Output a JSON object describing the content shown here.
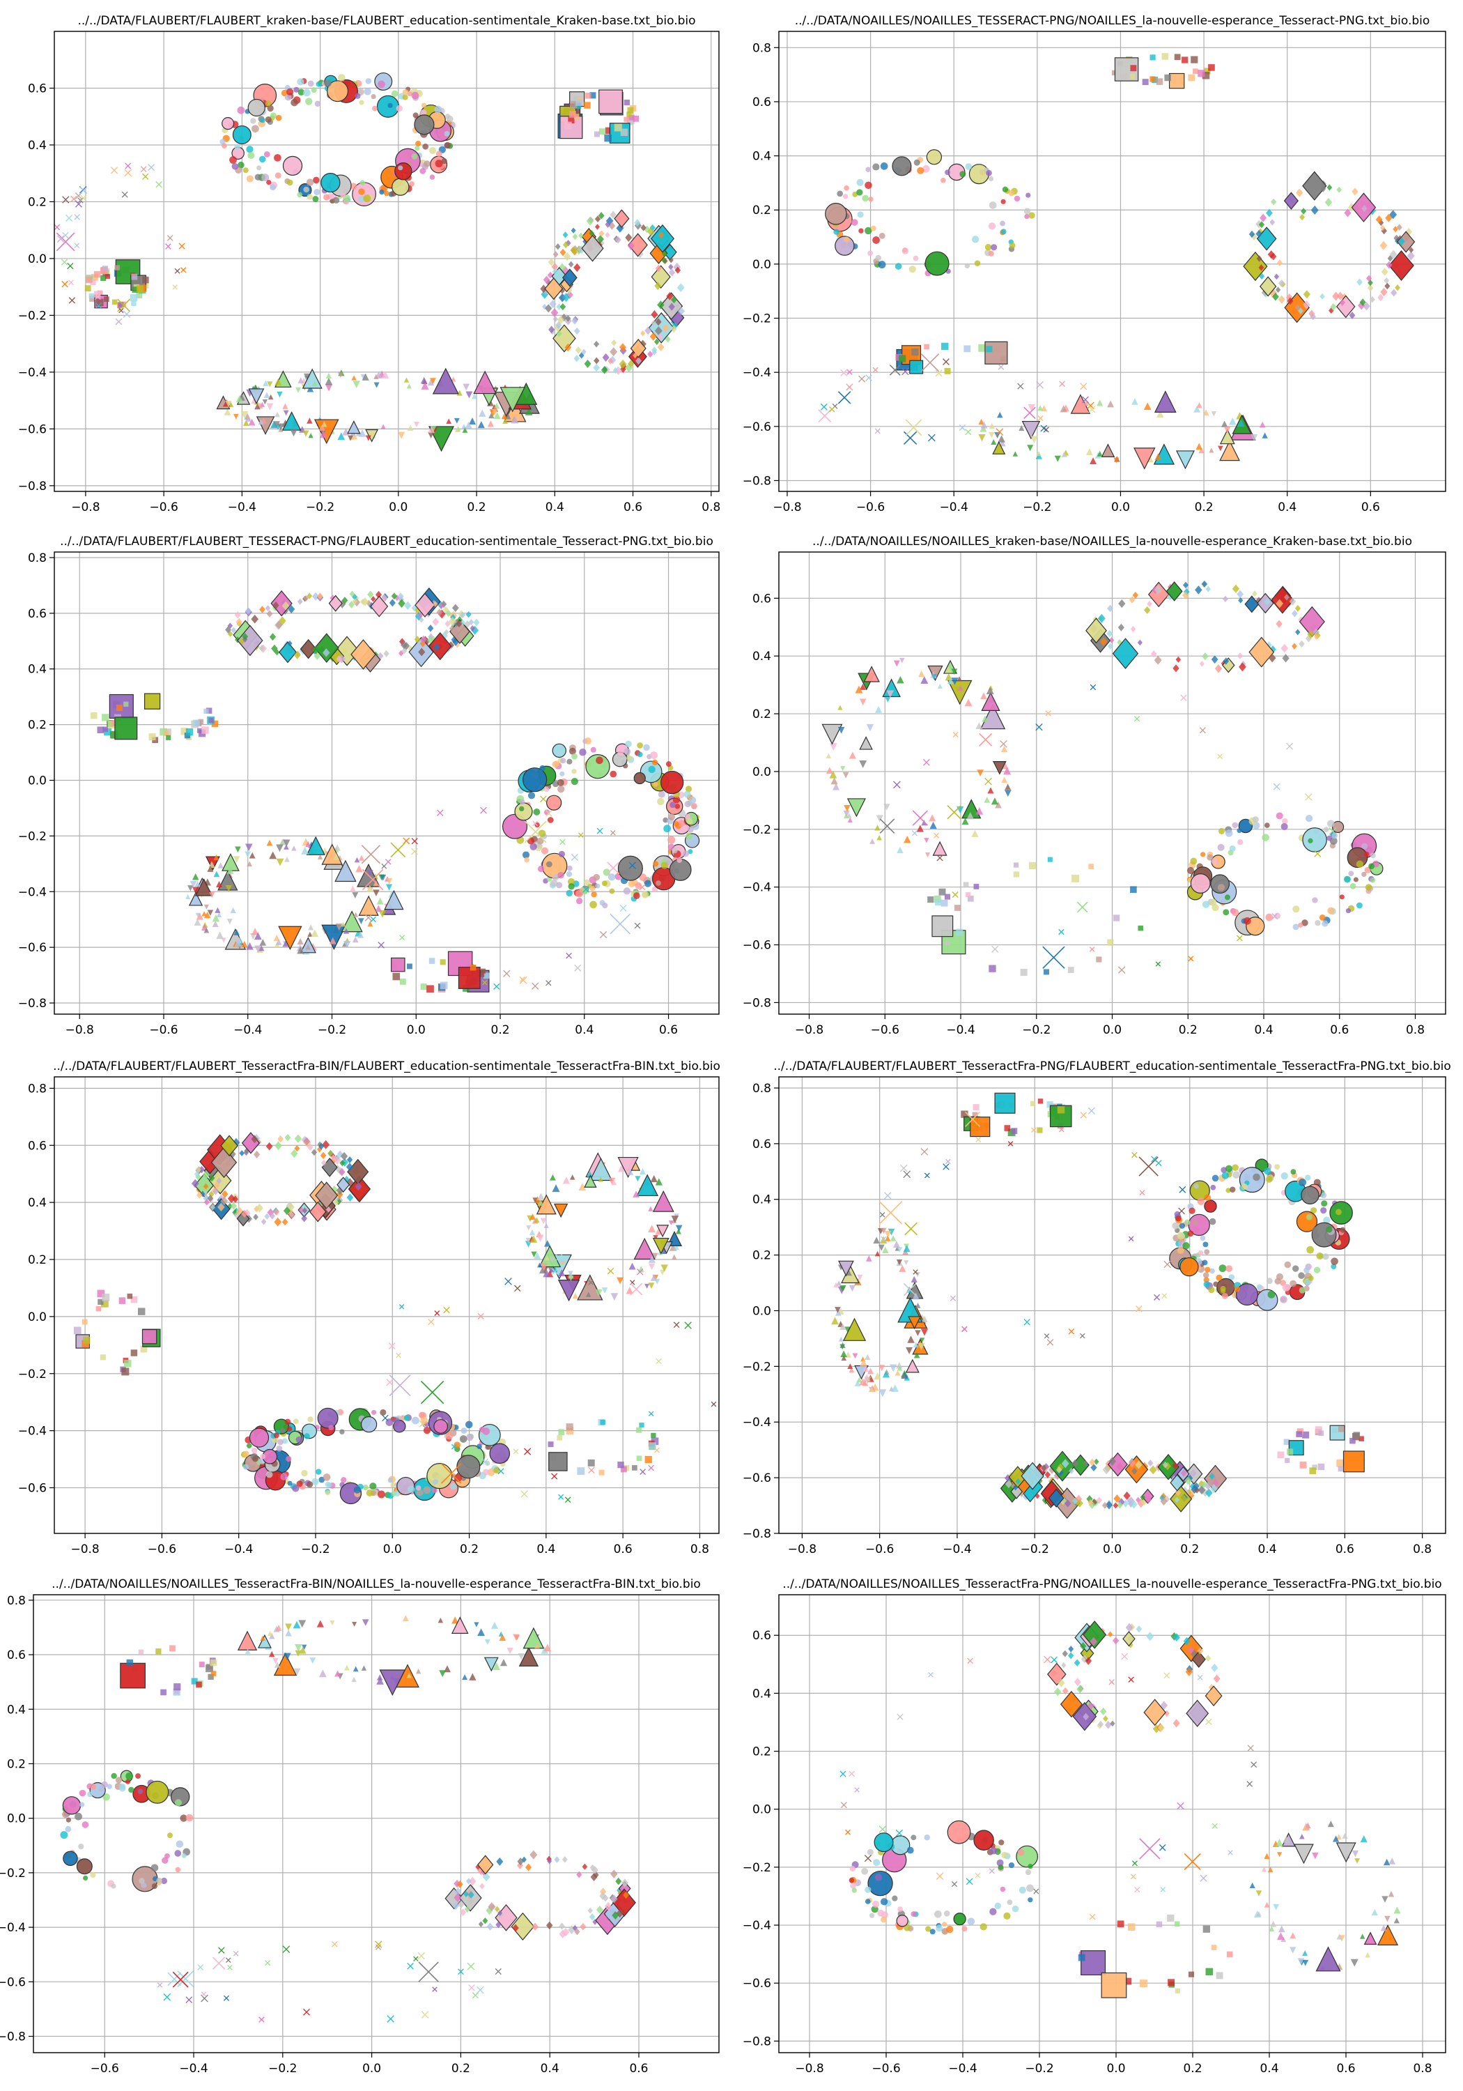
{
  "chart_data": [
    {
      "type": "scatter",
      "title": "../../DATA/FLAUBERT/FLAUBERT_kraken-base/FLAUBERT_education-sentimentale_Kraken-base.txt_bio.bio",
      "xlim": [
        -0.88,
        0.82
      ],
      "ylim": [
        -0.82,
        0.8
      ],
      "xticks": [
        -0.8,
        -0.6,
        -0.4,
        -0.2,
        0.0,
        0.2,
        0.4,
        0.6,
        0.8
      ],
      "xtick_labels": [
        "−0.8",
        "−0.6",
        "−0.4",
        "−0.2",
        "0.0",
        "0.2",
        "0.4",
        "0.6",
        "0.8"
      ],
      "yticks": [
        -0.8,
        -0.6,
        -0.4,
        -0.2,
        0.0,
        0.2,
        0.4,
        0.6
      ],
      "ytick_labels": [
        "−0.8",
        "−0.6",
        "−0.4",
        "−0.2",
        "0.0",
        "0.2",
        "0.4",
        "0.6"
      ],
      "grid": true,
      "clusters": [
        {
          "marker": "circle",
          "cx": -0.15,
          "cy": 0.42,
          "rx": 0.3,
          "ry": 0.22,
          "n": 220,
          "seed": 11
        },
        {
          "marker": "diamond",
          "cx": 0.55,
          "cy": -0.12,
          "rx": 0.18,
          "ry": 0.28,
          "n": 190,
          "seed": 12
        },
        {
          "marker": "triangle",
          "cx": -0.05,
          "cy": -0.52,
          "rx": 0.4,
          "ry": 0.12,
          "n": 170,
          "seed": 13
        },
        {
          "marker": "square",
          "cx": -0.72,
          "cy": -0.1,
          "rx": 0.08,
          "ry": 0.07,
          "n": 45,
          "seed": 14
        },
        {
          "marker": "square",
          "cx": 0.52,
          "cy": 0.5,
          "rx": 0.1,
          "ry": 0.08,
          "n": 45,
          "seed": 15
        },
        {
          "marker": "x",
          "cx": -0.7,
          "cy": 0.05,
          "rx": 0.18,
          "ry": 0.3,
          "n": 40,
          "seed": 16
        }
      ]
    },
    {
      "type": "scatter",
      "title": "../../DATA/NOAILLES/NOAILLES_TESSERACT-PNG/NOAILLES_la-nouvelle-esperance_Tesseract-PNG.txt_bio.bio",
      "xlim": [
        -0.82,
        0.78
      ],
      "ylim": [
        -0.84,
        0.86
      ],
      "xticks": [
        -0.8,
        -0.6,
        -0.4,
        -0.2,
        0.0,
        0.2,
        0.4,
        0.6
      ],
      "xtick_labels": [
        "−0.8",
        "−0.6",
        "−0.4",
        "−0.2",
        "0.0",
        "0.2",
        "0.4",
        "0.6"
      ],
      "yticks": [
        -0.8,
        -0.6,
        -0.4,
        -0.2,
        0.0,
        0.2,
        0.4,
        0.6,
        0.8
      ],
      "ytick_labels": [
        "−0.8",
        "−0.6",
        "−0.4",
        "−0.2",
        "0.0",
        "0.2",
        "0.4",
        "0.6",
        "0.8"
      ],
      "grid": true,
      "clusters": [
        {
          "marker": "circle",
          "cx": -0.45,
          "cy": 0.18,
          "rx": 0.25,
          "ry": 0.22,
          "n": 90,
          "seed": 21
        },
        {
          "marker": "diamond",
          "cx": 0.5,
          "cy": 0.05,
          "rx": 0.2,
          "ry": 0.25,
          "n": 110,
          "seed": 22
        },
        {
          "marker": "triangle",
          "cx": 0.0,
          "cy": -0.62,
          "rx": 0.35,
          "ry": 0.12,
          "n": 70,
          "seed": 23
        },
        {
          "marker": "square",
          "cx": 0.1,
          "cy": 0.72,
          "rx": 0.12,
          "ry": 0.05,
          "n": 25,
          "seed": 24
        },
        {
          "marker": "square",
          "cx": -0.4,
          "cy": -0.35,
          "rx": 0.15,
          "ry": 0.05,
          "n": 15,
          "seed": 25
        },
        {
          "marker": "x",
          "cx": -0.4,
          "cy": -0.5,
          "rx": 0.35,
          "ry": 0.15,
          "n": 35,
          "seed": 26
        }
      ]
    },
    {
      "type": "scatter",
      "title": "../../DATA/FLAUBERT/FLAUBERT_TESSERACT-PNG/FLAUBERT_education-sentimentale_Tesseract-PNG.txt_bio.bio",
      "xlim": [
        -0.86,
        0.72
      ],
      "ylim": [
        -0.84,
        0.82
      ],
      "xticks": [
        -0.8,
        -0.6,
        -0.4,
        -0.2,
        0.0,
        0.2,
        0.4,
        0.6
      ],
      "xtick_labels": [
        "−0.8",
        "−0.6",
        "−0.4",
        "−0.2",
        "0.0",
        "0.2",
        "0.4",
        "0.6"
      ],
      "yticks": [
        -0.8,
        -0.6,
        -0.4,
        -0.2,
        0.0,
        0.2,
        0.4,
        0.6,
        0.8
      ],
      "ytick_labels": [
        "−0.8",
        "−0.6",
        "−0.4",
        "−0.2",
        "0.0",
        "0.2",
        "0.4",
        "0.6",
        "0.8"
      ],
      "grid": true,
      "clusters": [
        {
          "marker": "diamond",
          "cx": -0.15,
          "cy": 0.55,
          "rx": 0.3,
          "ry": 0.12,
          "n": 190,
          "seed": 31
        },
        {
          "marker": "circle",
          "cx": 0.45,
          "cy": -0.15,
          "rx": 0.22,
          "ry": 0.3,
          "n": 230,
          "seed": 32
        },
        {
          "marker": "triangle",
          "cx": -0.3,
          "cy": -0.42,
          "rx": 0.25,
          "ry": 0.2,
          "n": 160,
          "seed": 33
        },
        {
          "marker": "square",
          "cx": -0.62,
          "cy": 0.22,
          "rx": 0.15,
          "ry": 0.08,
          "n": 40,
          "seed": 34
        },
        {
          "marker": "square",
          "cx": 0.05,
          "cy": -0.7,
          "rx": 0.12,
          "ry": 0.06,
          "n": 25,
          "seed": 35
        },
        {
          "marker": "x",
          "cx": 0.2,
          "cy": -0.4,
          "rx": 0.35,
          "ry": 0.35,
          "n": 40,
          "seed": 36
        }
      ]
    },
    {
      "type": "scatter",
      "title": "../../DATA/NOAILLES/NOAILLES_kraken-base/NOAILLES_la-nouvelle-esperance_Kraken-base.txt_bio.bio",
      "xlim": [
        -0.88,
        0.88
      ],
      "ylim": [
        -0.84,
        0.76
      ],
      "xticks": [
        -0.8,
        -0.6,
        -0.4,
        -0.2,
        0.0,
        0.2,
        0.4,
        0.6,
        0.8
      ],
      "xtick_labels": [
        "−0.8",
        "−0.6",
        "−0.4",
        "−0.2",
        "0.0",
        "0.2",
        "0.4",
        "0.6",
        "0.8"
      ],
      "yticks": [
        -0.8,
        -0.6,
        -0.4,
        -0.2,
        0.0,
        0.2,
        0.4,
        0.6
      ],
      "ytick_labels": [
        "−0.8",
        "−0.6",
        "−0.4",
        "−0.2",
        "0.0",
        "0.2",
        "0.4",
        "0.6"
      ],
      "grid": true,
      "clusters": [
        {
          "marker": "diamond",
          "cx": 0.25,
          "cy": 0.5,
          "rx": 0.3,
          "ry": 0.15,
          "n": 90,
          "seed": 41
        },
        {
          "marker": "circle",
          "cx": 0.45,
          "cy": -0.35,
          "rx": 0.25,
          "ry": 0.2,
          "n": 110,
          "seed": 42
        },
        {
          "marker": "triangle",
          "cx": -0.5,
          "cy": 0.05,
          "rx": 0.25,
          "ry": 0.35,
          "n": 90,
          "seed": 43
        },
        {
          "marker": "square",
          "cx": -0.2,
          "cy": -0.5,
          "rx": 0.3,
          "ry": 0.2,
          "n": 30,
          "seed": 44
        },
        {
          "marker": "x",
          "cx": 0.0,
          "cy": -0.2,
          "rx": 0.6,
          "ry": 0.5,
          "n": 35,
          "seed": 45
        }
      ]
    },
    {
      "type": "scatter",
      "title": "../../DATA/FLAUBERT/FLAUBERT_TesseractFra-BIN/FLAUBERT_education-sentimentale_TesseractFra-BIN.txt_bio.bio",
      "xlim": [
        -0.88,
        0.85
      ],
      "ylim": [
        -0.76,
        0.84
      ],
      "xticks": [
        -0.8,
        -0.6,
        -0.4,
        -0.2,
        0.0,
        0.2,
        0.4,
        0.6,
        0.8
      ],
      "xtick_labels": [
        "−0.8",
        "−0.6",
        "−0.4",
        "−0.2",
        "0.0",
        "0.2",
        "0.4",
        "0.6",
        "0.8"
      ],
      "yticks": [
        -0.6,
        -0.4,
        -0.2,
        0.0,
        0.2,
        0.4,
        0.6,
        0.8
      ],
      "ytick_labels": [
        "−0.6",
        "−0.4",
        "−0.2",
        "0.0",
        "0.2",
        "0.4",
        "0.6",
        "0.8"
      ],
      "grid": true,
      "clusters": [
        {
          "marker": "diamond",
          "cx": -0.3,
          "cy": 0.48,
          "rx": 0.22,
          "ry": 0.15,
          "n": 170,
          "seed": 51
        },
        {
          "marker": "circle",
          "cx": -0.05,
          "cy": -0.48,
          "rx": 0.35,
          "ry": 0.15,
          "n": 230,
          "seed": 52
        },
        {
          "marker": "triangle",
          "cx": 0.55,
          "cy": 0.3,
          "rx": 0.2,
          "ry": 0.25,
          "n": 120,
          "seed": 53
        },
        {
          "marker": "square",
          "cx": -0.72,
          "cy": -0.05,
          "rx": 0.1,
          "ry": 0.15,
          "n": 25,
          "seed": 54
        },
        {
          "marker": "square",
          "cx": 0.55,
          "cy": -0.45,
          "rx": 0.15,
          "ry": 0.1,
          "n": 25,
          "seed": 55
        },
        {
          "marker": "x",
          "cx": 0.4,
          "cy": -0.2,
          "rx": 0.45,
          "ry": 0.45,
          "n": 40,
          "seed": 56
        }
      ]
    },
    {
      "type": "scatter",
      "title": "../../DATA/FLAUBERT/FLAUBERT_TesseractFra-PNG/FLAUBERT_education-sentimentale_TesseractFra-PNG.txt_bio.bio",
      "xlim": [
        -0.86,
        0.86
      ],
      "ylim": [
        -0.8,
        0.84
      ],
      "xticks": [
        -0.8,
        -0.6,
        -0.4,
        -0.2,
        0.0,
        0.2,
        0.4,
        0.6,
        0.8
      ],
      "xtick_labels": [
        "−0.8",
        "−0.6",
        "−0.4",
        "−0.2",
        "0.0",
        "0.2",
        "0.4",
        "0.6",
        "0.8"
      ],
      "yticks": [
        -0.8,
        -0.6,
        -0.4,
        -0.2,
        0.0,
        0.2,
        0.4,
        0.6,
        0.8
      ],
      "ytick_labels": [
        "−0.8",
        "−0.6",
        "−0.4",
        "−0.2",
        "0.0",
        "0.2",
        "0.4",
        "0.6",
        "0.8"
      ],
      "grid": true,
      "clusters": [
        {
          "marker": "circle",
          "cx": 0.38,
          "cy": 0.28,
          "rx": 0.22,
          "ry": 0.25,
          "n": 190,
          "seed": 61
        },
        {
          "marker": "diamond",
          "cx": 0.0,
          "cy": -0.62,
          "rx": 0.28,
          "ry": 0.08,
          "n": 170,
          "seed": 62
        },
        {
          "marker": "triangle",
          "cx": -0.6,
          "cy": 0.0,
          "rx": 0.12,
          "ry": 0.3,
          "n": 110,
          "seed": 63
        },
        {
          "marker": "square",
          "cx": -0.25,
          "cy": 0.7,
          "rx": 0.15,
          "ry": 0.06,
          "n": 30,
          "seed": 64
        },
        {
          "marker": "square",
          "cx": 0.55,
          "cy": -0.5,
          "rx": 0.12,
          "ry": 0.08,
          "n": 25,
          "seed": 65
        },
        {
          "marker": "x",
          "cx": -0.2,
          "cy": 0.3,
          "rx": 0.4,
          "ry": 0.45,
          "n": 40,
          "seed": 66
        }
      ]
    },
    {
      "type": "scatter",
      "title": "../../DATA/NOAILLES/NOAILLES_TesseractFra-BIN/NOAILLES_la-nouvelle-esperance_TesseractFra-BIN.txt_bio.bio",
      "xlim": [
        -0.76,
        0.78
      ],
      "ylim": [
        -0.86,
        0.82
      ],
      "xticks": [
        -0.6,
        -0.4,
        -0.2,
        0.0,
        0.2,
        0.4,
        0.6
      ],
      "xtick_labels": [
        "−0.6",
        "−0.4",
        "−0.2",
        "0.0",
        "0.2",
        "0.4",
        "0.6"
      ],
      "yticks": [
        -0.8,
        -0.6,
        -0.4,
        -0.2,
        0.0,
        0.2,
        0.4,
        0.6,
        0.8
      ],
      "ytick_labels": [
        "−0.8",
        "−0.6",
        "−0.4",
        "−0.2",
        "0.0",
        "0.2",
        "0.4",
        "0.6",
        "0.8"
      ],
      "grid": true,
      "clusters": [
        {
          "marker": "circle",
          "cx": -0.55,
          "cy": -0.05,
          "rx": 0.15,
          "ry": 0.22,
          "n": 70,
          "seed": 71
        },
        {
          "marker": "diamond",
          "cx": 0.38,
          "cy": -0.28,
          "rx": 0.2,
          "ry": 0.15,
          "n": 90,
          "seed": 72
        },
        {
          "marker": "triangle",
          "cx": 0.05,
          "cy": 0.62,
          "rx": 0.35,
          "ry": 0.12,
          "n": 70,
          "seed": 73
        },
        {
          "marker": "square",
          "cx": -0.45,
          "cy": 0.55,
          "rx": 0.1,
          "ry": 0.1,
          "n": 20,
          "seed": 74
        },
        {
          "marker": "x",
          "cx": -0.1,
          "cy": -0.6,
          "rx": 0.4,
          "ry": 0.15,
          "n": 35,
          "seed": 75
        }
      ]
    },
    {
      "type": "scatter",
      "title": "../../DATA/NOAILLES/NOAILLES_TesseractFra-PNG/NOAILLES_la-nouvelle-esperance_TesseractFra-PNG.txt_bio.bio",
      "xlim": [
        -0.88,
        0.86
      ],
      "ylim": [
        -0.84,
        0.74
      ],
      "xticks": [
        -0.8,
        -0.6,
        -0.4,
        -0.2,
        0.0,
        0.2,
        0.4,
        0.6,
        0.8
      ],
      "xtick_labels": [
        "−0.8",
        "−0.6",
        "−0.4",
        "−0.2",
        "0.0",
        "0.2",
        "0.4",
        "0.6",
        "0.8"
      ],
      "yticks": [
        -0.8,
        -0.6,
        -0.4,
        -0.2,
        0.0,
        0.2,
        0.4,
        0.6
      ],
      "ytick_labels": [
        "−0.8",
        "−0.6",
        "−0.4",
        "−0.2",
        "0.0",
        "0.2",
        "0.4",
        "0.6"
      ],
      "grid": true,
      "clusters": [
        {
          "marker": "circle",
          "cx": -0.45,
          "cy": -0.25,
          "rx": 0.25,
          "ry": 0.18,
          "n": 90,
          "seed": 81
        },
        {
          "marker": "diamond",
          "cx": 0.05,
          "cy": 0.45,
          "rx": 0.22,
          "ry": 0.18,
          "n": 80,
          "seed": 82
        },
        {
          "marker": "triangle",
          "cx": 0.55,
          "cy": -0.3,
          "rx": 0.2,
          "ry": 0.25,
          "n": 60,
          "seed": 83
        },
        {
          "marker": "square",
          "cx": 0.1,
          "cy": -0.5,
          "rx": 0.2,
          "ry": 0.15,
          "n": 20,
          "seed": 84
        },
        {
          "marker": "x",
          "cx": -0.2,
          "cy": 0.1,
          "rx": 0.6,
          "ry": 0.5,
          "n": 40,
          "seed": 85
        }
      ]
    }
  ]
}
